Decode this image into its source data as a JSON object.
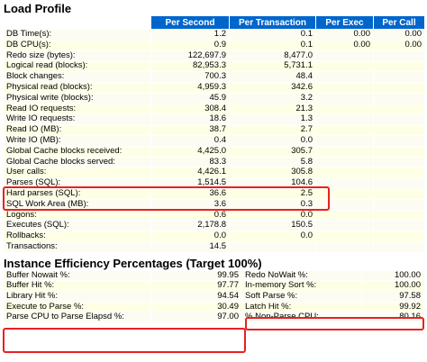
{
  "load_profile": {
    "title": "Load Profile",
    "headers": [
      "",
      "Per Second",
      "Per Transaction",
      "Per Exec",
      "Per Call"
    ],
    "rows": [
      {
        "label": "DB Time(s):",
        "per_second": "1.2",
        "per_transaction": "0.1",
        "per_exec": "0.00",
        "per_call": "0.00"
      },
      {
        "label": "DB CPU(s):",
        "per_second": "0.9",
        "per_transaction": "0.1",
        "per_exec": "0.00",
        "per_call": "0.00"
      },
      {
        "label": "Redo size (bytes):",
        "per_second": "122,697.9",
        "per_transaction": "8,477.0",
        "per_exec": "",
        "per_call": ""
      },
      {
        "label": "Logical read (blocks):",
        "per_second": "82,953.3",
        "per_transaction": "5,731.1",
        "per_exec": "",
        "per_call": ""
      },
      {
        "label": "Block changes:",
        "per_second": "700.3",
        "per_transaction": "48.4",
        "per_exec": "",
        "per_call": ""
      },
      {
        "label": "Physical read (blocks):",
        "per_second": "4,959.3",
        "per_transaction": "342.6",
        "per_exec": "",
        "per_call": ""
      },
      {
        "label": "Physical write (blocks):",
        "per_second": "45.9",
        "per_transaction": "3.2",
        "per_exec": "",
        "per_call": ""
      },
      {
        "label": "Read IO requests:",
        "per_second": "308.4",
        "per_transaction": "21.3",
        "per_exec": "",
        "per_call": ""
      },
      {
        "label": "Write IO requests:",
        "per_second": "18.6",
        "per_transaction": "1.3",
        "per_exec": "",
        "per_call": ""
      },
      {
        "label": "Read IO (MB):",
        "per_second": "38.7",
        "per_transaction": "2.7",
        "per_exec": "",
        "per_call": ""
      },
      {
        "label": "Write IO (MB):",
        "per_second": "0.4",
        "per_transaction": "0.0",
        "per_exec": "",
        "per_call": ""
      },
      {
        "label": "Global Cache blocks received:",
        "per_second": "4,425.0",
        "per_transaction": "305.7",
        "per_exec": "",
        "per_call": ""
      },
      {
        "label": "Global Cache blocks served:",
        "per_second": "83.3",
        "per_transaction": "5.8",
        "per_exec": "",
        "per_call": ""
      },
      {
        "label": "User calls:",
        "per_second": "4,426.1",
        "per_transaction": "305.8",
        "per_exec": "",
        "per_call": ""
      },
      {
        "label": "Parses (SQL):",
        "per_second": "1,514.5",
        "per_transaction": "104.6",
        "per_exec": "",
        "per_call": ""
      },
      {
        "label": "Hard parses (SQL):",
        "per_second": "36.6",
        "per_transaction": "2.5",
        "per_exec": "",
        "per_call": ""
      },
      {
        "label": "SQL Work Area (MB):",
        "per_second": "3.6",
        "per_transaction": "0.3",
        "per_exec": "",
        "per_call": ""
      },
      {
        "label": "Logons:",
        "per_second": "0.6",
        "per_transaction": "0.0",
        "per_exec": "",
        "per_call": ""
      },
      {
        "label": "Executes (SQL):",
        "per_second": "2,178.8",
        "per_transaction": "150.5",
        "per_exec": "",
        "per_call": ""
      },
      {
        "label": "Rollbacks:",
        "per_second": "0.0",
        "per_transaction": "0.0",
        "per_exec": "",
        "per_call": ""
      },
      {
        "label": "Transactions:",
        "per_second": "14.5",
        "per_transaction": "",
        "per_exec": "",
        "per_call": ""
      }
    ]
  },
  "instance_efficiency": {
    "title": "Instance Efficiency Percentages (Target 100%)",
    "rows": [
      {
        "label1": "Buffer Nowait %:",
        "value1": "99.95",
        "label2": "Redo NoWait %:",
        "value2": "100.00"
      },
      {
        "label1": "Buffer Hit %:",
        "value1": "97.77",
        "label2": "In-memory Sort %:",
        "value2": "100.00"
      },
      {
        "label1": "Library Hit %:",
        "value1": "94.54",
        "label2": "Soft Parse %:",
        "value2": "97.58"
      },
      {
        "label1": "Execute to Parse %:",
        "value1": "30.49",
        "label2": "Latch Hit %:",
        "value2": "99.92"
      },
      {
        "label1": "Parse CPU to Parse Elapsd %:",
        "value1": "97.00",
        "label2": "% Non-Parse CPU:",
        "value2": "80.16"
      }
    ]
  },
  "colors": {
    "header_bg": "#0066cc",
    "highlight": "#e82020",
    "row_bg": "#fcfcf2"
  }
}
